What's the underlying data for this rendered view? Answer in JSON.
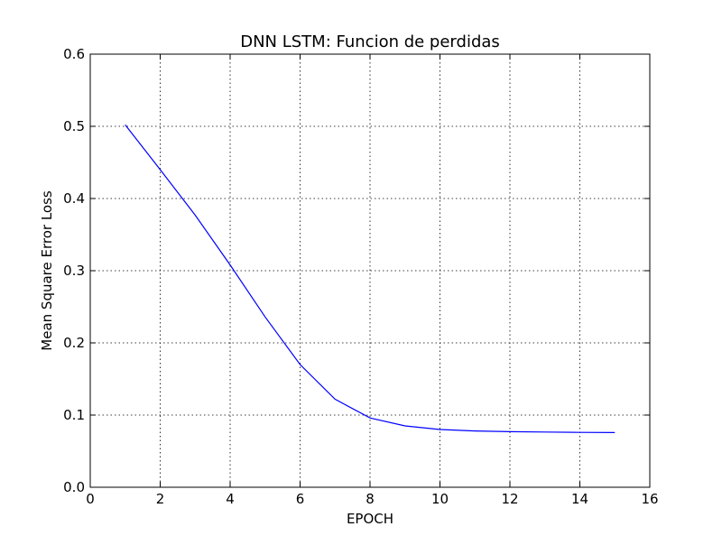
{
  "chart_data": {
    "type": "line",
    "title": "DNN LSTM: Funcion de perdidas",
    "xlabel": "EPOCH",
    "ylabel": "Mean Square Error Loss",
    "xlim": [
      0,
      16
    ],
    "ylim": [
      0.0,
      0.6
    ],
    "xticks": [
      "0",
      "2",
      "4",
      "6",
      "8",
      "10",
      "12",
      "14",
      "16"
    ],
    "yticks": [
      "0.0",
      "0.1",
      "0.2",
      "0.3",
      "0.4",
      "0.5",
      "0.6"
    ],
    "grid": true,
    "series": [
      {
        "x": [
          1,
          2,
          3,
          4,
          5,
          6,
          7,
          8,
          9,
          10,
          11,
          12,
          13,
          14,
          15
        ],
        "values": [
          0.502,
          0.44,
          0.377,
          0.308,
          0.236,
          0.17,
          0.122,
          0.096,
          0.085,
          0.08,
          0.078,
          0.077,
          0.0765,
          0.076,
          0.0758
        ],
        "color": "#0000ff"
      }
    ]
  }
}
